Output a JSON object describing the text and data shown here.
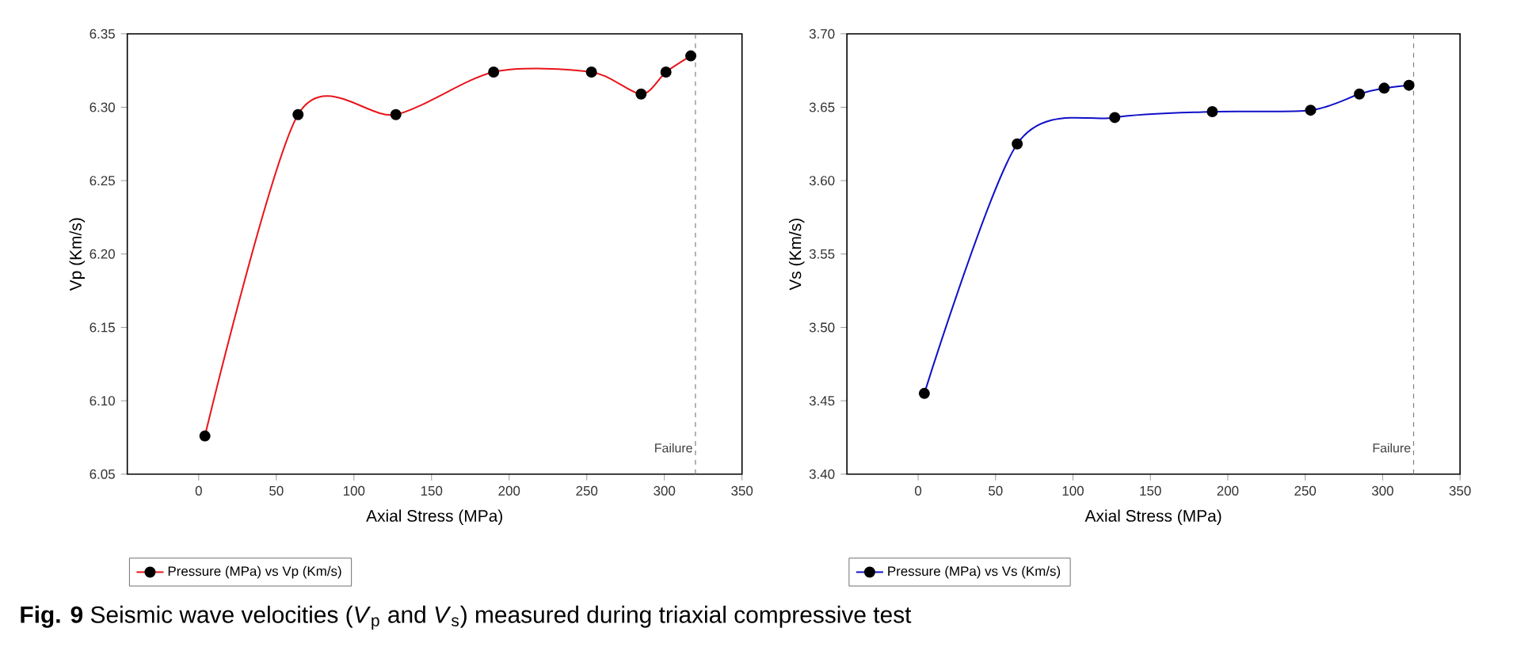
{
  "chart_data": [
    {
      "type": "line",
      "xlabel": "Axial Stress (MPa)",
      "ylabel": "Vp (Km/s)",
      "xlim": [
        -46,
        350
      ],
      "ylim": [
        6.05,
        6.35
      ],
      "xticks": [
        0,
        50,
        100,
        150,
        200,
        250,
        300,
        350
      ],
      "yticks": [
        6.05,
        {
          "value": 6.1,
          "label": "6.10"
        },
        6.15,
        {
          "value": 6.2,
          "label": "6.20"
        },
        6.25,
        {
          "value": 6.3,
          "label": "6.30"
        },
        6.35
      ],
      "legend": "bottom",
      "marker": "circle",
      "x": [
        4,
        64,
        127,
        190,
        253,
        285,
        301,
        317
      ],
      "series": [
        {
          "name": "Pressure (MPa) vs  Vp (Km/s)",
          "color": "#e8141a",
          "values": [
            6.076,
            6.295,
            6.295,
            6.324,
            6.324,
            6.309,
            6.324,
            6.335
          ]
        }
      ],
      "ref_lines": [
        {
          "axis": "x",
          "value": 320,
          "label": "Failure",
          "color": "#808080",
          "line_style": "dashed"
        }
      ],
      "annotations": [
        "**Fig. 9**  Seismic wave velocities (*V*$_{p}$ and *V*$_{s}$) measured during triaxial compressive test"
      ]
    },
    {
      "type": "line",
      "xlabel": "Axial Stress (MPa)",
      "ylabel": "Vs (Km/s)",
      "xlim": [
        -46,
        350
      ],
      "ylim": [
        3.4,
        3.7
      ],
      "xticks": [
        0,
        50,
        100,
        150,
        200,
        250,
        300,
        350
      ],
      "yticks": [
        {
          "value": 3.4,
          "label": "3.40"
        },
        3.45,
        {
          "value": 3.5,
          "label": "3.50"
        },
        3.55,
        {
          "value": 3.6,
          "label": "3.60"
        },
        3.65,
        {
          "value": 3.7,
          "label": "3.70"
        }
      ],
      "legend": "bottom",
      "marker": "circle",
      "x": [
        4,
        64,
        127,
        190,
        253.5,
        285,
        301,
        317
      ],
      "series": [
        {
          "name": "Pressure (MPa) vs Vs (Km/s)",
          "color": "#1010c8",
          "values": [
            3.455,
            3.625,
            3.643,
            3.647,
            3.648,
            3.659,
            3.663,
            3.665
          ]
        }
      ],
      "ref_lines": [
        {
          "axis": "x",
          "value": 320,
          "label": "Failure",
          "color": "#808080",
          "line_style": "dashed"
        }
      ]
    }
  ]
}
